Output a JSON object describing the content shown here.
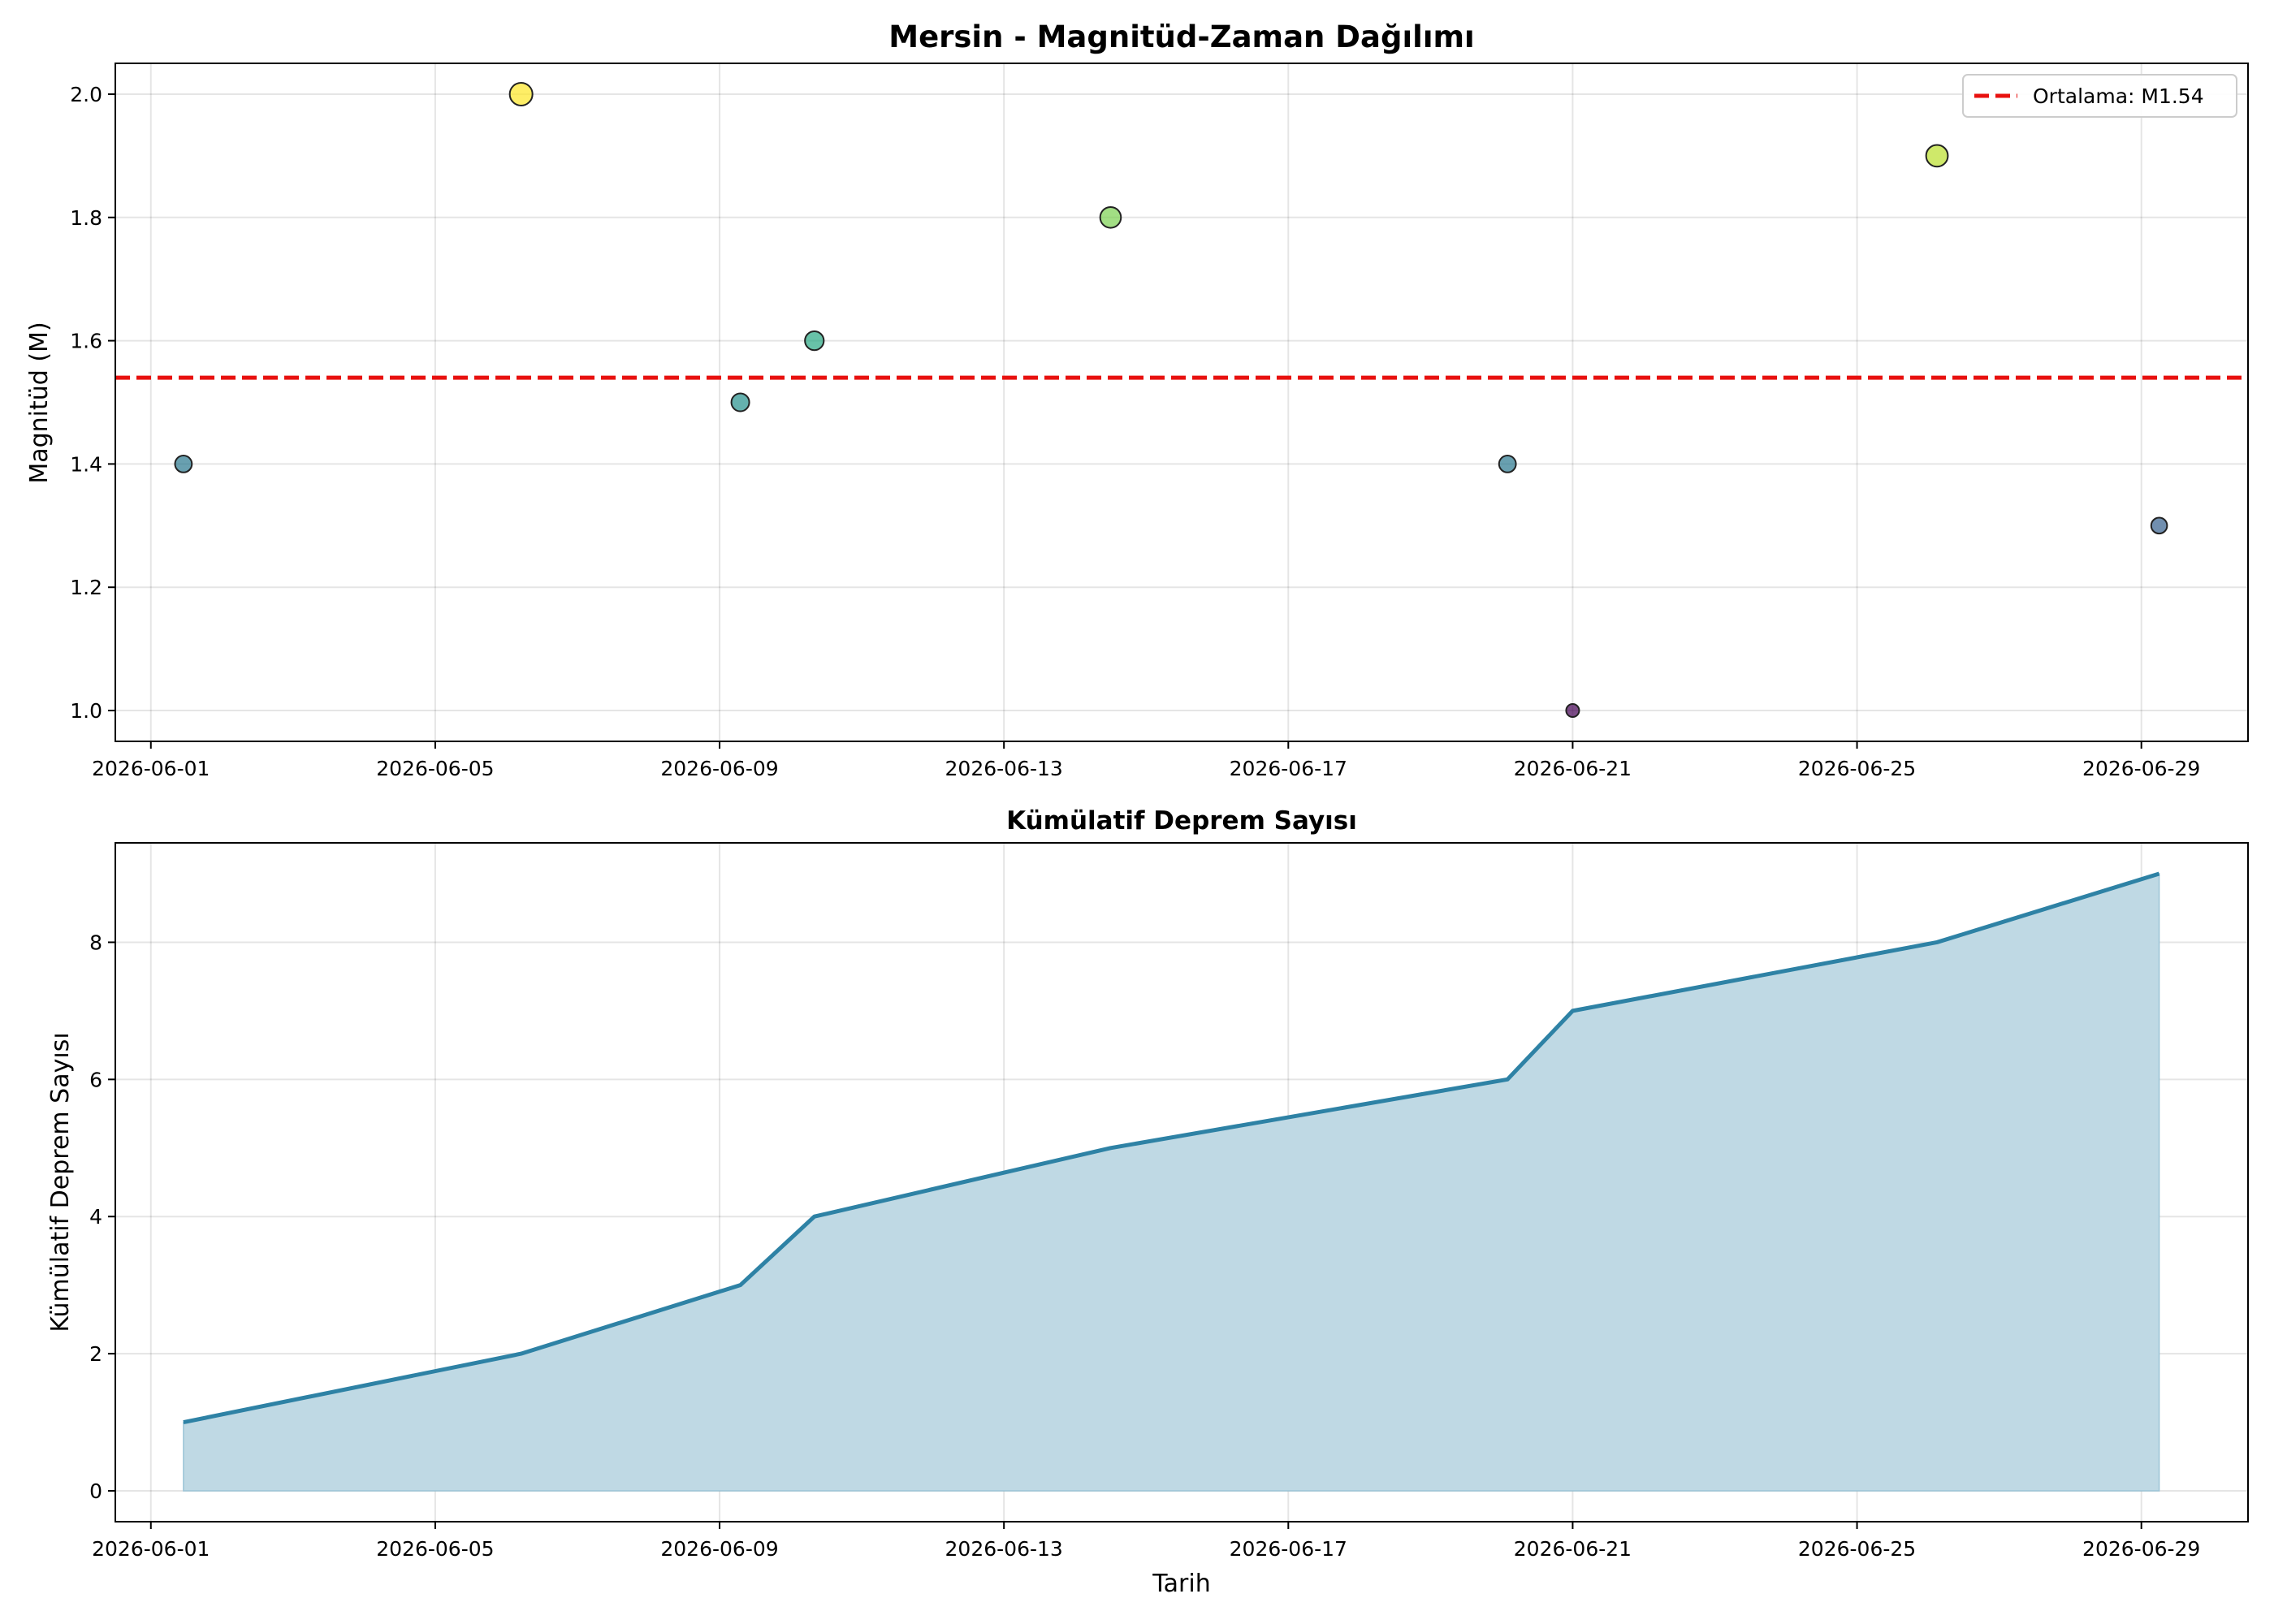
{
  "chart_data": [
    {
      "type": "scatter",
      "title": "Mersin - Magnitüd-Zaman Dağılımı",
      "xlabel": "",
      "ylabel": "Magnitüd (M)",
      "xlim": [
        "2026-05-31T12:00",
        "2026-06-30T12:00"
      ],
      "ylim": [
        0.95,
        2.05
      ],
      "x_ticks": [
        "2026-06-01",
        "2026-06-05",
        "2026-06-09",
        "2026-06-13",
        "2026-06-17",
        "2026-06-21",
        "2026-06-25",
        "2026-06-29"
      ],
      "y_ticks": [
        "1.0",
        "1.2",
        "1.4",
        "1.6",
        "1.8",
        "2.0"
      ],
      "grid": true,
      "points": [
        {
          "x": "2026-06-01T11:00",
          "y": 1.4
        },
        {
          "x": "2026-06-06T05:00",
          "y": 2.0
        },
        {
          "x": "2026-06-09T07:00",
          "y": 1.5
        },
        {
          "x": "2026-06-10T08:00",
          "y": 1.6
        },
        {
          "x": "2026-06-14T12:00",
          "y": 1.8
        },
        {
          "x": "2026-06-20T02:00",
          "y": 1.4
        },
        {
          "x": "2026-06-21T00:00",
          "y": 1.0
        },
        {
          "x": "2026-06-26T03:00",
          "y": 1.9
        },
        {
          "x": "2026-06-29T06:00",
          "y": 1.3
        }
      ],
      "mean_line": {
        "y": 1.54,
        "color": "#e8110f",
        "style": "dashed"
      },
      "legend": {
        "entries": [
          "Ortalama: M1.54"
        ],
        "position": "top-right"
      },
      "colormap": "viridis"
    },
    {
      "type": "area",
      "title": "Kümülatif Deprem Sayısı",
      "xlabel": "Tarih",
      "ylabel": "Kümülatif Deprem Sayısı",
      "xlim": [
        "2026-05-31T12:00",
        "2026-06-30T12:00"
      ],
      "ylim": [
        -0.45,
        9.45
      ],
      "x_ticks": [
        "2026-06-01",
        "2026-06-05",
        "2026-06-09",
        "2026-06-13",
        "2026-06-17",
        "2026-06-21",
        "2026-06-25",
        "2026-06-29"
      ],
      "y_ticks": [
        "0",
        "2",
        "4",
        "6",
        "8"
      ],
      "grid": true,
      "x": [
        "2026-06-01T11:00",
        "2026-06-06T05:00",
        "2026-06-09T07:00",
        "2026-06-10T08:00",
        "2026-06-14T12:00",
        "2026-06-20T02:00",
        "2026-06-21T00:00",
        "2026-06-26T03:00",
        "2026-06-29T06:00"
      ],
      "values": [
        1,
        2,
        3,
        4,
        5,
        6,
        7,
        8,
        9
      ],
      "line_color": "#2e82a5",
      "fill_color": "#bfd9e4"
    }
  ]
}
